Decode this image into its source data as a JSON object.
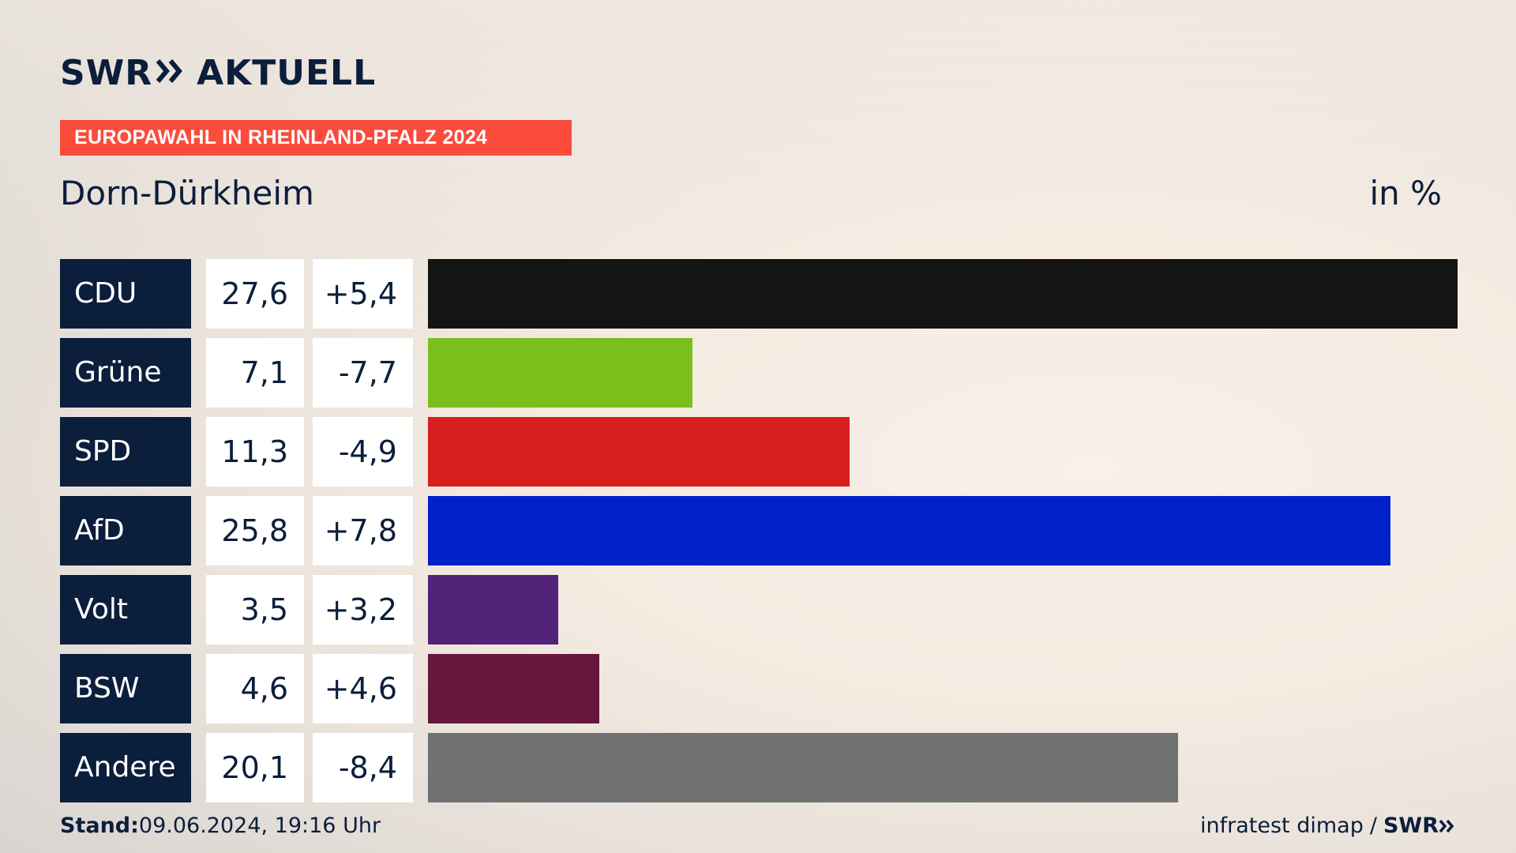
{
  "header": {
    "brand": "SWR",
    "brand_suffix": "AKTUELL",
    "topic": "EUROPAWAHL IN RHEINLAND-PFALZ 2024",
    "region": "Dorn-Dürkheim",
    "unit": "in %"
  },
  "chart_data": {
    "type": "bar",
    "orientation": "horizontal",
    "categories": [
      "CDU",
      "Grüne",
      "SPD",
      "AfD",
      "Volt",
      "BSW",
      "Andere"
    ],
    "values": [
      27.6,
      7.1,
      11.3,
      25.8,
      3.5,
      4.6,
      20.1
    ],
    "value_labels": [
      "27,6",
      "7,1",
      "11,3",
      "25,8",
      "3,5",
      "4,6",
      "20,1"
    ],
    "changes": [
      5.4,
      -7.7,
      -4.9,
      7.8,
      3.2,
      4.6,
      -8.4
    ],
    "change_labels": [
      "+5,4",
      "-7,7",
      "-4,9",
      "+7,8",
      "+3,2",
      "+4,6",
      "-8,4"
    ],
    "colors": [
      "#141414",
      "#7abf1c",
      "#d81e1e",
      "#0021c9",
      "#502378",
      "#65173d",
      "#707173"
    ],
    "xlim": [
      0,
      27.6
    ],
    "grid": false,
    "legend": false
  },
  "footer": {
    "stand_label": "Stand:",
    "stand_value": "09.06.2024, 19:16 Uhr",
    "source": "infratest dimap",
    "separator": "/",
    "source_brand": "SWR"
  },
  "icons": {
    "brand_chevrons": "double-chevron-right-icon"
  }
}
